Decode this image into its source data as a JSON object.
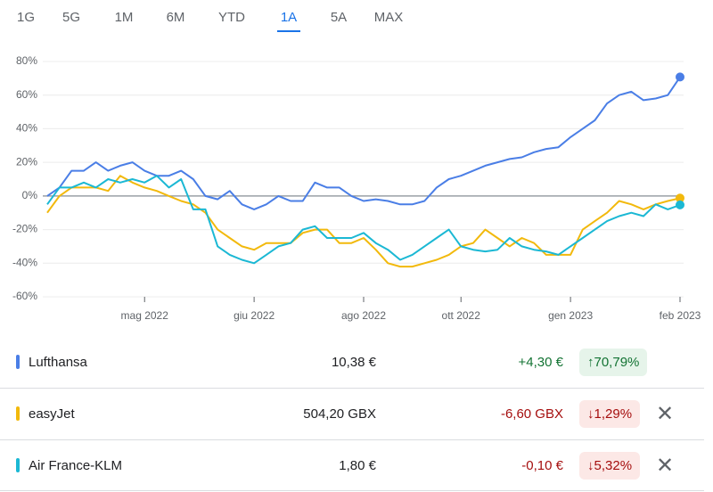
{
  "tabs": [
    "1G",
    "5G",
    "1M",
    "6M",
    "YTD",
    "1A",
    "5A",
    "MAX"
  ],
  "chart_data": {
    "type": "line",
    "categories": [
      null,
      null,
      null,
      null,
      null,
      null,
      null,
      null,
      "mag 2022",
      null,
      null,
      null,
      null,
      null,
      null,
      null,
      null,
      "giu 2022",
      null,
      null,
      null,
      null,
      null,
      null,
      null,
      null,
      "ago 2022",
      null,
      null,
      null,
      null,
      null,
      null,
      null,
      "ott 2022",
      null,
      null,
      null,
      null,
      null,
      null,
      null,
      null,
      "gen 2023",
      null,
      null,
      null,
      null,
      null,
      null,
      null,
      null,
      "feb 2023"
    ],
    "ylim": [
      -60,
      80
    ],
    "yticks": [
      {
        "value": -60,
        "label": "-60%"
      },
      {
        "value": -40,
        "label": "-40%"
      },
      {
        "value": -20,
        "label": "-20%"
      },
      {
        "value": 0,
        "label": "0%"
      },
      {
        "value": 20,
        "label": "20%"
      },
      {
        "value": 40,
        "label": "40%"
      },
      {
        "value": 60,
        "label": "60%"
      },
      {
        "value": 80,
        "label": "80%"
      }
    ],
    "grid": true,
    "series": [
      {
        "name": "Lufthansa",
        "color": "#4a7ee6",
        "values": [
          0,
          5,
          15,
          15,
          20,
          15,
          18,
          20,
          15,
          12,
          12,
          15,
          10,
          0,
          -2,
          3,
          -5,
          -8,
          -5,
          0,
          -3,
          -3,
          8,
          5,
          5,
          0,
          -3,
          -2,
          -3,
          -5,
          -5,
          -3,
          5,
          10,
          12,
          15,
          18,
          20,
          22,
          23,
          26,
          28,
          29,
          35,
          40,
          45,
          55,
          60,
          62,
          57,
          58,
          60,
          70.79
        ]
      },
      {
        "name": "easyJet",
        "color": "#f2b90c",
        "values": [
          -10,
          0,
          5,
          5,
          5,
          3,
          12,
          8,
          5,
          3,
          0,
          -3,
          -5,
          -10,
          -20,
          -25,
          -30,
          -32,
          -28,
          -28,
          -28,
          -22,
          -20,
          -20,
          -28,
          -28,
          -25,
          -32,
          -40,
          -42,
          -42,
          -40,
          -38,
          -35,
          -30,
          -28,
          -20,
          -25,
          -30,
          -25,
          -28,
          -35,
          -35,
          -35,
          -20,
          -15,
          -10,
          -3,
          -5,
          -8,
          -5,
          -3,
          -1.29
        ]
      },
      {
        "name": "Air France-KLM",
        "color": "#1bb8d4",
        "values": [
          -5,
          5,
          5,
          8,
          5,
          10,
          8,
          10,
          8,
          12,
          5,
          10,
          -8,
          -8,
          -30,
          -35,
          -38,
          -40,
          -35,
          -30,
          -28,
          -20,
          -18,
          -25,
          -25,
          -25,
          -22,
          -28,
          -32,
          -38,
          -35,
          -30,
          -25,
          -20,
          -30,
          -32,
          -33,
          -32,
          -25,
          -30,
          -32,
          -33,
          -35,
          -30,
          -25,
          -20,
          -15,
          -12,
          -10,
          -12,
          -5,
          -8,
          -5.32
        ]
      }
    ]
  },
  "table": {
    "rows": [
      {
        "price": "10,38 €",
        "change": "+4,30 €",
        "change_percent": "70,79%"
      },
      {
        "price": "504,20 GBX",
        "change": "-6,60 GBX",
        "change_percent": "1,29%"
      },
      {
        "price": "1,80 €",
        "change": "-0,10 €",
        "change_percent": "5,32%"
      }
    ]
  }
}
